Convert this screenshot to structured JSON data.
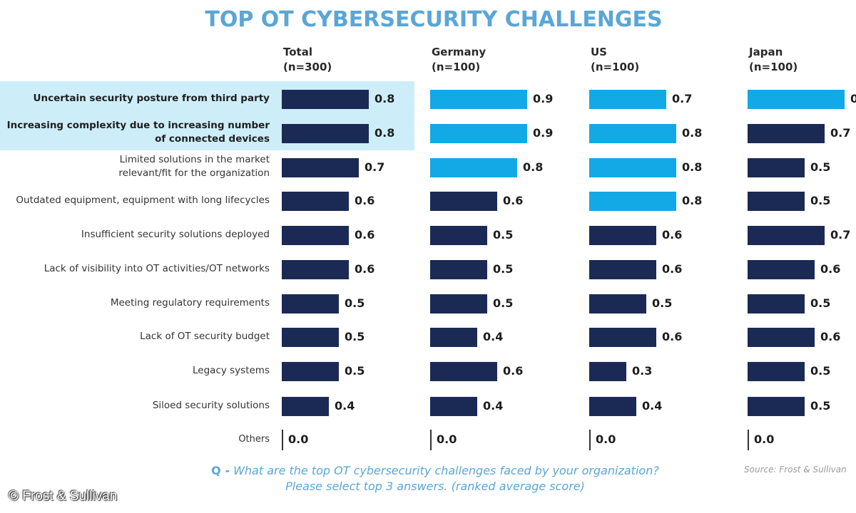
{
  "chart_data": {
    "type": "bar",
    "orientation": "horizontal",
    "title": "TOP OT CYBERSECURITY CHALLENGES",
    "categories": [
      "Uncertain security posture from third party",
      "Increasing complexity due to increasing number of connected devices",
      "Limited solutions in the market relevant/fit for the organization",
      "Outdated equipment, equipment with long lifecycles",
      "Insufficient security solutions deployed",
      "Lack of visibility into OT activities/OT networks",
      "Meeting regulatory requirements",
      "Lack of OT security budget",
      "Legacy systems",
      "Siloed security solutions",
      "Others"
    ],
    "category_lines": [
      [
        "Uncertain security posture from third party"
      ],
      [
        "Increasing complexity due to increasing number",
        "of connected devices"
      ],
      [
        "Limited solutions in the market",
        "relevant/fit for the organization"
      ],
      [
        "Outdated equipment, equipment with long lifecycles"
      ],
      [
        "Insufficient security solutions deployed"
      ],
      [
        "Lack of visibility into OT activities/OT networks"
      ],
      [
        "Meeting regulatory requirements"
      ],
      [
        "Lack of OT security budget"
      ],
      [
        "Legacy systems"
      ],
      [
        "Siloed security solutions"
      ],
      [
        "Others"
      ]
    ],
    "highlighted_categories": [
      0,
      1
    ],
    "series": [
      {
        "name": "Total",
        "sample": "(n=300)",
        "values": [
          0.8,
          0.8,
          0.7,
          0.6,
          0.6,
          0.6,
          0.5,
          0.5,
          0.5,
          0.4,
          0.0
        ],
        "highlight": [
          false,
          false,
          false,
          false,
          false,
          false,
          false,
          false,
          false,
          false,
          false
        ]
      },
      {
        "name": "Germany",
        "sample": "(n=100)",
        "values": [
          0.9,
          0.9,
          0.8,
          0.6,
          0.5,
          0.5,
          0.5,
          0.4,
          0.6,
          0.4,
          0.0
        ],
        "highlight": [
          true,
          true,
          true,
          false,
          false,
          false,
          false,
          false,
          false,
          false,
          false
        ]
      },
      {
        "name": "US",
        "sample": "(n=100)",
        "values": [
          0.7,
          0.8,
          0.8,
          0.8,
          0.6,
          0.6,
          0.5,
          0.6,
          0.3,
          0.4,
          0.0
        ],
        "highlight": [
          true,
          true,
          true,
          true,
          false,
          false,
          false,
          false,
          false,
          false,
          false
        ]
      },
      {
        "name": "Japan",
        "sample": "(n=100)",
        "values": [
          0.9,
          0.7,
          0.5,
          0.5,
          0.7,
          0.6,
          0.5,
          0.6,
          0.5,
          0.5,
          0.0
        ],
        "value_labels_visible": [
          "0.",
          "0.7",
          "0.5",
          "0.5",
          "0.7",
          "0.6",
          "0.5",
          "0.6",
          "0.5",
          "0.5",
          "0.0"
        ],
        "highlight": [
          true,
          false,
          false,
          false,
          false,
          false,
          false,
          false,
          false,
          false,
          false
        ]
      }
    ],
    "colors": {
      "default_bar": "#1b2a55",
      "highlight_bar": "#12a9e6",
      "highlight_band": "#cdeef9",
      "title": "#5aa6d6"
    },
    "xlabel": "",
    "ylabel": "",
    "xlim": [
      0,
      1
    ],
    "grid": false,
    "legend": "none"
  },
  "footer": {
    "question_prefix": "Q -",
    "question_line1": "What are the top OT cybersecurity challenges faced by your organization?",
    "question_line2": "Please select top 3 answers. (ranked average score)",
    "source": "Source: Frost & Sullivan",
    "copyright": "© Frost & Sullivan"
  }
}
